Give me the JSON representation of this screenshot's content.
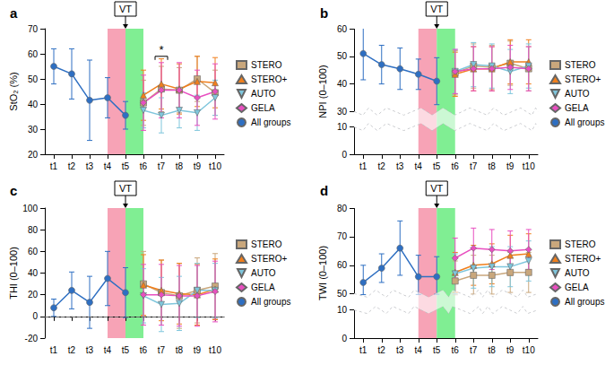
{
  "chart_data": [
    {
      "type": "line",
      "panel": "a",
      "y_label": "StO₂ (%)",
      "categories": [
        "t1",
        "t2",
        "t3",
        "t4",
        "t5",
        "t6",
        "t7",
        "t8",
        "t9",
        "t10"
      ],
      "ylim": [
        20,
        70
      ],
      "yticks": [
        20,
        30,
        40,
        50,
        60,
        70
      ],
      "grid": false,
      "legend": "right",
      "shaded": [
        {
          "from": "t4",
          "to": "t5",
          "color": "#f7a3b6"
        },
        {
          "from": "t5",
          "to": "t6",
          "color": "#80ee93"
        }
      ],
      "annotations": [
        {
          "x": "t5",
          "text": "VT"
        }
      ],
      "significance": [
        {
          "x": "t7",
          "y": 59,
          "text": "*"
        }
      ],
      "series": [
        {
          "name": "STERO",
          "color": "#c9a77c",
          "marker": "square",
          "values": [
            null,
            null,
            null,
            null,
            null,
            40.5,
            46,
            45.5,
            50,
            44.5
          ],
          "errors": [
            null,
            null,
            null,
            null,
            null,
            9,
            9,
            9,
            9,
            9
          ]
        },
        {
          "name": "STERO+",
          "color": "#f07f1c",
          "marker": "triangle",
          "values": [
            null,
            null,
            null,
            null,
            null,
            43.5,
            48,
            46,
            49,
            48.5
          ],
          "errors": [
            null,
            null,
            null,
            null,
            null,
            10,
            10,
            10,
            10,
            10
          ]
        },
        {
          "name": "AUTO",
          "color": "#7fc6dc",
          "marker": "triangle-down",
          "values": [
            null,
            null,
            null,
            null,
            null,
            37.5,
            35.5,
            37.5,
            36.5,
            42.5
          ],
          "errors": [
            null,
            null,
            null,
            null,
            null,
            7,
            7,
            7,
            7,
            7
          ]
        },
        {
          "name": "GELA",
          "color": "#e84fc0",
          "marker": "diamond",
          "values": [
            null,
            null,
            null,
            null,
            null,
            40.5,
            45.5,
            45.5,
            42.5,
            45
          ],
          "errors": [
            null,
            null,
            null,
            null,
            null,
            11,
            11,
            11,
            11,
            11
          ]
        },
        {
          "name": "All groups",
          "color": "#2e6fc2",
          "marker": "circle",
          "values": [
            55,
            52,
            41.5,
            42.5,
            35.5,
            null,
            null,
            null,
            null,
            null
          ],
          "errors": [
            7,
            10,
            16,
            8,
            5.5,
            null,
            null,
            null,
            null,
            null
          ]
        }
      ]
    },
    {
      "type": "line",
      "panel": "b",
      "y_label": "NPI (0–100)",
      "categories": [
        "t1",
        "t2",
        "t3",
        "t4",
        "t5",
        "t6",
        "t7",
        "t8",
        "t9",
        "t10"
      ],
      "ylim": [
        0,
        60
      ],
      "yticks": [
        0,
        10,
        30,
        40,
        50,
        60
      ],
      "ybreak": [
        10,
        30
      ],
      "grid": false,
      "legend": "right",
      "shaded": [
        {
          "from": "t4",
          "to": "t5",
          "color": "#f7a3b6"
        },
        {
          "from": "t5",
          "to": "t6",
          "color": "#80ee93"
        }
      ],
      "annotations": [
        {
          "x": "t5",
          "text": "VT"
        }
      ],
      "series": [
        {
          "name": "STERO",
          "color": "#c9a77c",
          "marker": "square",
          "values": [
            null,
            null,
            null,
            null,
            null,
            44,
            46.5,
            46,
            47.5,
            45.5
          ],
          "errors": [
            null,
            null,
            null,
            null,
            null,
            8,
            8,
            8,
            8,
            8
          ]
        },
        {
          "name": "STERO+",
          "color": "#f07f1c",
          "marker": "triangle",
          "values": [
            null,
            null,
            null,
            null,
            null,
            43.5,
            45.5,
            45.5,
            48,
            48
          ],
          "errors": [
            null,
            null,
            null,
            null,
            null,
            8,
            8,
            8,
            8,
            8
          ]
        },
        {
          "name": "AUTO",
          "color": "#7fc6dc",
          "marker": "triangle-down",
          "values": [
            null,
            null,
            null,
            null,
            null,
            44.5,
            47,
            46.5,
            44.5,
            46.5
          ],
          "errors": [
            null,
            null,
            null,
            null,
            null,
            8,
            8,
            8,
            8,
            8
          ]
        },
        {
          "name": "GELA",
          "color": "#e84fc0",
          "marker": "diamond",
          "values": [
            null,
            null,
            null,
            null,
            null,
            44.5,
            45.5,
            45.5,
            46,
            45.5
          ],
          "errors": [
            null,
            null,
            null,
            null,
            null,
            8,
            8,
            8,
            8,
            8
          ]
        },
        {
          "name": "All groups",
          "color": "#2e6fc2",
          "marker": "circle",
          "values": [
            51,
            47,
            45.5,
            43.5,
            41,
            null,
            null,
            null,
            null,
            null
          ],
          "errors": [
            9.5,
            7,
            7.5,
            5.5,
            8.5,
            null,
            null,
            null,
            null,
            null
          ]
        }
      ]
    },
    {
      "type": "line",
      "panel": "c",
      "y_label": "THI (0–100)",
      "categories": [
        "t1",
        "t2",
        "t3",
        "t4",
        "t5",
        "t6",
        "t7",
        "t8",
        "t9",
        "t10"
      ],
      "ylim": [
        -20,
        100
      ],
      "yticks": [
        -20,
        0,
        20,
        40,
        60,
        80,
        100
      ],
      "grid": false,
      "legend": "right",
      "reference_line": {
        "y": 0,
        "line_style": "dashed"
      },
      "shaded": [
        {
          "from": "t4",
          "to": "t5",
          "color": "#f7a3b6"
        },
        {
          "from": "t5",
          "to": "t6",
          "color": "#80ee93"
        }
      ],
      "annotations": [
        {
          "x": "t5",
          "text": "VT"
        }
      ],
      "series": [
        {
          "name": "STERO",
          "color": "#c9a77c",
          "marker": "square",
          "values": [
            null,
            null,
            null,
            null,
            null,
            30,
            22,
            19,
            24,
            28
          ],
          "errors": [
            null,
            null,
            null,
            null,
            null,
            30,
            30,
            30,
            30,
            30
          ]
        },
        {
          "name": "STERO+",
          "color": "#f07f1c",
          "marker": "triangle",
          "values": [
            null,
            null,
            null,
            null,
            null,
            29,
            24,
            21,
            20,
            25
          ],
          "errors": [
            null,
            null,
            null,
            null,
            null,
            28,
            28,
            28,
            28,
            28
          ]
        },
        {
          "name": "AUTO",
          "color": "#7fc6dc",
          "marker": "triangle-down",
          "values": [
            null,
            null,
            null,
            null,
            null,
            19,
            11,
            12,
            24,
            24
          ],
          "errors": [
            null,
            null,
            null,
            null,
            null,
            25,
            25,
            25,
            25,
            25
          ]
        },
        {
          "name": "GELA",
          "color": "#e84fc0",
          "marker": "diamond",
          "values": [
            null,
            null,
            null,
            null,
            null,
            20,
            20,
            19,
            19,
            23
          ],
          "errors": [
            null,
            null,
            null,
            null,
            null,
            28,
            28,
            28,
            28,
            28
          ]
        },
        {
          "name": "All groups",
          "color": "#2e6fc2",
          "marker": "circle",
          "values": [
            8,
            24,
            13,
            35,
            22,
            null,
            null,
            null,
            null,
            null
          ],
          "errors": [
            8,
            17,
            24,
            25,
            23,
            null,
            null,
            null,
            null,
            null
          ]
        }
      ]
    },
    {
      "type": "line",
      "panel": "d",
      "y_label": "TWI (0–100)",
      "categories": [
        "t1",
        "t2",
        "t3",
        "t4",
        "t5",
        "t6",
        "t7",
        "t8",
        "t9",
        "t10"
      ],
      "ylim": [
        0,
        80
      ],
      "yticks": [
        0,
        10,
        50,
        60,
        70,
        80
      ],
      "ybreak": [
        10,
        50
      ],
      "grid": false,
      "legend": "right",
      "shaded": [
        {
          "from": "t4",
          "to": "t5",
          "color": "#f7a3b6"
        },
        {
          "from": "t5",
          "to": "t6",
          "color": "#80ee93"
        }
      ],
      "annotations": [
        {
          "x": "t5",
          "text": "VT"
        }
      ],
      "series": [
        {
          "name": "STERO",
          "color": "#c9a77c",
          "marker": "square",
          "values": [
            null,
            null,
            null,
            null,
            null,
            54.5,
            56.5,
            56.5,
            57.5,
            57.5
          ],
          "errors": [
            null,
            null,
            null,
            null,
            null,
            7,
            7,
            7,
            7,
            7
          ]
        },
        {
          "name": "STERO+",
          "color": "#f07f1c",
          "marker": "triangle",
          "values": [
            null,
            null,
            null,
            null,
            null,
            57.5,
            60,
            60.5,
            63.5,
            64
          ],
          "errors": [
            null,
            null,
            null,
            null,
            null,
            7,
            7,
            7,
            7,
            7
          ]
        },
        {
          "name": "AUTO",
          "color": "#7fc6dc",
          "marker": "triangle-down",
          "values": [
            null,
            null,
            null,
            null,
            null,
            57,
            59,
            59.5,
            59.5,
            61.5
          ],
          "errors": [
            null,
            null,
            null,
            null,
            null,
            7,
            7,
            7,
            7,
            7
          ]
        },
        {
          "name": "GELA",
          "color": "#e84fc0",
          "marker": "diamond",
          "values": [
            null,
            null,
            null,
            null,
            null,
            62.5,
            66,
            65.5,
            65,
            65.5
          ],
          "errors": [
            null,
            null,
            null,
            null,
            null,
            7,
            7,
            7,
            7,
            7
          ]
        },
        {
          "name": "All groups",
          "color": "#2e6fc2",
          "marker": "circle",
          "values": [
            54,
            59,
            66,
            56,
            56,
            null,
            null,
            null,
            null,
            null
          ],
          "errors": [
            6,
            5,
            9.5,
            7.5,
            7,
            null,
            null,
            null,
            null,
            null
          ]
        }
      ]
    }
  ]
}
